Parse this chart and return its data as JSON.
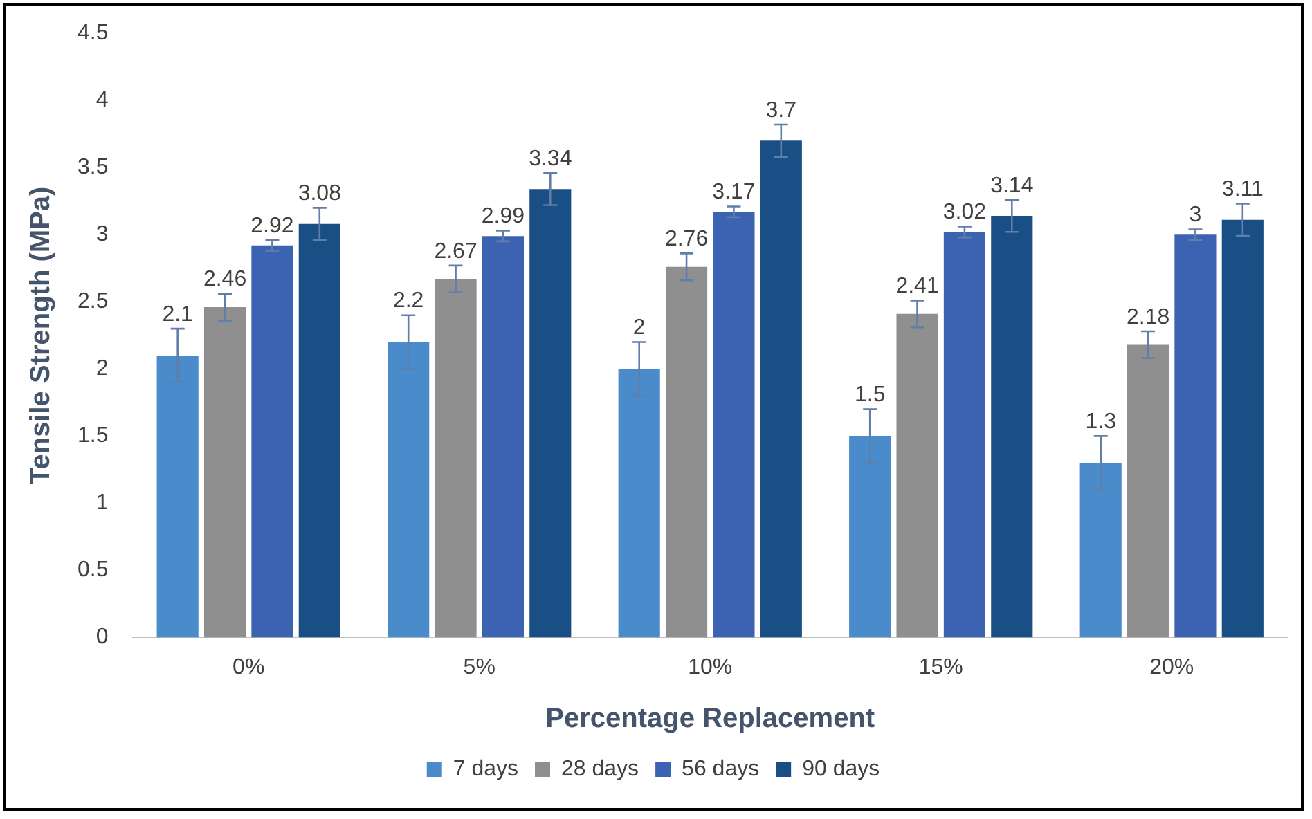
{
  "chart_data": {
    "type": "bar",
    "xlabel": "Percentage Replacement",
    "ylabel": "Tensile Strength (MPa)",
    "categories": [
      "0%",
      "5%",
      "10%",
      "15%",
      "20%"
    ],
    "series": [
      {
        "name": "7 days",
        "color": "#4a8bcc",
        "values": [
          2.1,
          2.2,
          2,
          1.5,
          1.3
        ],
        "errors": [
          0.2,
          0.2,
          0.2,
          0.2,
          0.2
        ]
      },
      {
        "name": "28 days",
        "color": "#8f8f8f",
        "values": [
          2.46,
          2.67,
          2.76,
          2.41,
          2.18
        ],
        "errors": [
          0.1,
          0.1,
          0.1,
          0.1,
          0.1
        ]
      },
      {
        "name": "56 days",
        "color": "#3c63b1",
        "values": [
          2.92,
          2.99,
          3.17,
          3.02,
          3
        ],
        "errors": [
          0.04,
          0.04,
          0.04,
          0.04,
          0.04
        ]
      },
      {
        "name": "90 days",
        "color": "#1a4f86",
        "values": [
          3.08,
          3.34,
          3.7,
          3.14,
          3.11
        ],
        "errors": [
          0.12,
          0.12,
          0.12,
          0.12,
          0.12
        ]
      }
    ],
    "ylim": [
      0,
      4.5
    ],
    "yticks": [
      0,
      0.5,
      1,
      1.5,
      2,
      2.5,
      3,
      3.5,
      4,
      4.5
    ],
    "grid": false,
    "legend": "bottom",
    "data_labels": true
  }
}
